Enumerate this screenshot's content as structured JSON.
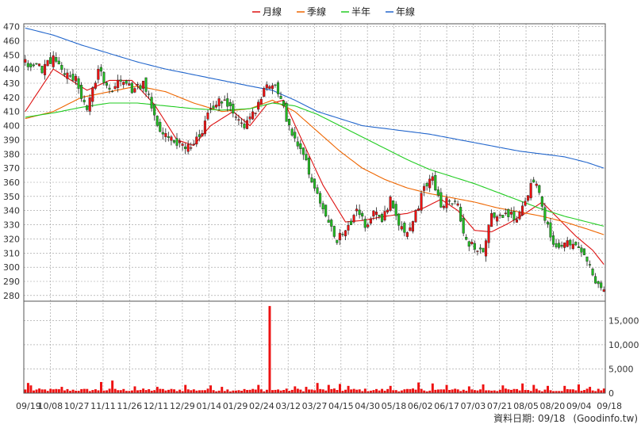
{
  "chart_data": {
    "type": "candlestick",
    "legend": [
      {
        "name": "月線",
        "color": "#dd1111"
      },
      {
        "name": "季線",
        "color": "#ee6600"
      },
      {
        "name": "半年",
        "color": "#22cc22"
      },
      {
        "name": "年線",
        "color": "#2266cc"
      }
    ],
    "price_axis": {
      "ylim": [
        276,
        472
      ],
      "ticks": [
        "470",
        "460",
        "450",
        "440",
        "430",
        "420",
        "410",
        "400",
        "390",
        "380",
        "370",
        "360",
        "350",
        "340",
        "330",
        "320",
        "310",
        "300",
        "290",
        "280"
      ]
    },
    "volume_axis": {
      "ylim": [
        0,
        19000
      ],
      "ticks": [
        "15,000",
        "10,000",
        "5,000",
        "0"
      ]
    },
    "x_labels": [
      "09/19",
      "10/08",
      "10/27",
      "11/11",
      "11/26",
      "12/11",
      "12/29",
      "01/14",
      "01/29",
      "02/24",
      "03/12",
      "03/27",
      "04/15",
      "04/30",
      "05/18",
      "06/02",
      "06/17",
      "07/03",
      "07/21",
      "08/05",
      "08/20",
      "09/04",
      "09/18"
    ],
    "close_anchors": [
      [
        0,
        445
      ],
      [
        6,
        440
      ],
      [
        10,
        447
      ],
      [
        14,
        438
      ],
      [
        18,
        432
      ],
      [
        22,
        410
      ],
      [
        26,
        440
      ],
      [
        30,
        425
      ],
      [
        34,
        432
      ],
      [
        38,
        425
      ],
      [
        42,
        430
      ],
      [
        45,
        415
      ],
      [
        48,
        395
      ],
      [
        51,
        390
      ],
      [
        55,
        388
      ],
      [
        59,
        385
      ],
      [
        62,
        392
      ],
      [
        66,
        412
      ],
      [
        70,
        418
      ],
      [
        74,
        410
      ],
      [
        78,
        400
      ],
      [
        82,
        410
      ],
      [
        86,
        432
      ],
      [
        90,
        425
      ],
      [
        93,
        405
      ],
      [
        96,
        390
      ],
      [
        99,
        380
      ],
      [
        102,
        360
      ],
      [
        105,
        345
      ],
      [
        108,
        330
      ],
      [
        111,
        320
      ],
      [
        115,
        328
      ],
      [
        118,
        342
      ],
      [
        121,
        330
      ],
      [
        124,
        338
      ],
      [
        127,
        334
      ],
      [
        130,
        348
      ],
      [
        133,
        330
      ],
      [
        136,
        325
      ],
      [
        139,
        338
      ],
      [
        142,
        355
      ],
      [
        145,
        362
      ],
      [
        148,
        345
      ],
      [
        151,
        348
      ],
      [
        154,
        342
      ],
      [
        157,
        318
      ],
      [
        160,
        315
      ],
      [
        163,
        312
      ],
      [
        166,
        338
      ],
      [
        169,
        335
      ],
      [
        172,
        338
      ],
      [
        175,
        333
      ],
      [
        178,
        345
      ],
      [
        181,
        362
      ],
      [
        183,
        355
      ],
      [
        185,
        335
      ],
      [
        188,
        315
      ],
      [
        191,
        313
      ],
      [
        194,
        318
      ],
      [
        197,
        313
      ],
      [
        200,
        306
      ],
      [
        202,
        292
      ],
      [
        204,
        286
      ],
      [
        206,
        283
      ]
    ],
    "ma_series": {
      "月線": [
        [
          0,
          410
        ],
        [
          10,
          440
        ],
        [
          22,
          425
        ],
        [
          30,
          432
        ],
        [
          38,
          432
        ],
        [
          46,
          415
        ],
        [
          54,
          390
        ],
        [
          60,
          386
        ],
        [
          66,
          400
        ],
        [
          74,
          410
        ],
        [
          80,
          400
        ],
        [
          86,
          415
        ],
        [
          92,
          418
        ],
        [
          98,
          392
        ],
        [
          106,
          358
        ],
        [
          114,
          332
        ],
        [
          120,
          333
        ],
        [
          128,
          336
        ],
        [
          136,
          338
        ],
        [
          142,
          342
        ],
        [
          148,
          348
        ],
        [
          154,
          340
        ],
        [
          160,
          326
        ],
        [
          166,
          325
        ],
        [
          172,
          331
        ],
        [
          178,
          338
        ],
        [
          184,
          346
        ],
        [
          190,
          334
        ],
        [
          196,
          322
        ],
        [
          202,
          312
        ],
        [
          206,
          302
        ]
      ],
      "季線": [
        [
          0,
          405
        ],
        [
          10,
          410
        ],
        [
          20,
          420
        ],
        [
          30,
          424
        ],
        [
          40,
          428
        ],
        [
          50,
          424
        ],
        [
          60,
          416
        ],
        [
          70,
          410
        ],
        [
          80,
          412
        ],
        [
          88,
          418
        ],
        [
          96,
          410
        ],
        [
          104,
          396
        ],
        [
          112,
          382
        ],
        [
          120,
          370
        ],
        [
          128,
          362
        ],
        [
          136,
          356
        ],
        [
          144,
          352
        ],
        [
          152,
          349
        ],
        [
          160,
          346
        ],
        [
          168,
          342
        ],
        [
          176,
          339
        ],
        [
          184,
          336
        ],
        [
          192,
          332
        ],
        [
          200,
          327
        ],
        [
          206,
          323
        ]
      ],
      "半年": [
        [
          0,
          406
        ],
        [
          10,
          409
        ],
        [
          20,
          413
        ],
        [
          30,
          416
        ],
        [
          40,
          416
        ],
        [
          50,
          414
        ],
        [
          60,
          412
        ],
        [
          70,
          411
        ],
        [
          80,
          412
        ],
        [
          88,
          416
        ],
        [
          96,
          414
        ],
        [
          104,
          408
        ],
        [
          112,
          400
        ],
        [
          120,
          392
        ],
        [
          128,
          384
        ],
        [
          136,
          376
        ],
        [
          144,
          369
        ],
        [
          152,
          364
        ],
        [
          160,
          359
        ],
        [
          168,
          353
        ],
        [
          176,
          347
        ],
        [
          184,
          341
        ],
        [
          192,
          336
        ],
        [
          200,
          332
        ],
        [
          206,
          329
        ]
      ],
      "年線": [
        [
          0,
          469
        ],
        [
          10,
          464
        ],
        [
          20,
          457
        ],
        [
          30,
          451
        ],
        [
          40,
          445
        ],
        [
          50,
          440
        ],
        [
          60,
          436
        ],
        [
          70,
          432
        ],
        [
          80,
          428
        ],
        [
          88,
          425
        ],
        [
          96,
          418
        ],
        [
          104,
          410
        ],
        [
          112,
          405
        ],
        [
          120,
          400
        ],
        [
          128,
          398
        ],
        [
          136,
          396
        ],
        [
          144,
          394
        ],
        [
          152,
          391
        ],
        [
          160,
          388
        ],
        [
          168,
          385
        ],
        [
          176,
          382
        ],
        [
          184,
          380
        ],
        [
          192,
          378
        ],
        [
          200,
          374
        ],
        [
          206,
          370
        ]
      ]
    },
    "volume_series": {
      "baseline": 600,
      "spikes": [
        [
          1,
          2100
        ],
        [
          2,
          1600
        ],
        [
          13,
          1300
        ],
        [
          27,
          2300
        ],
        [
          31,
          2600
        ],
        [
          39,
          1400
        ],
        [
          47,
          1300
        ],
        [
          57,
          1700
        ],
        [
          66,
          1600
        ],
        [
          70,
          1300
        ],
        [
          83,
          1700
        ],
        [
          87,
          18000
        ],
        [
          96,
          1400
        ],
        [
          100,
          1300
        ],
        [
          104,
          2100
        ],
        [
          108,
          1700
        ],
        [
          112,
          1900
        ],
        [
          115,
          1500
        ],
        [
          130,
          1500
        ],
        [
          140,
          2200
        ],
        [
          145,
          2000
        ],
        [
          150,
          1700
        ],
        [
          158,
          1400
        ],
        [
          163,
          1800
        ],
        [
          170,
          1600
        ],
        [
          177,
          2000
        ],
        [
          181,
          1700
        ],
        [
          186,
          1500
        ],
        [
          192,
          1500
        ],
        [
          197,
          1800
        ],
        [
          201,
          1300
        ]
      ]
    }
  },
  "footer": {
    "label": "資料日期:",
    "date": "09/18",
    "source": "(Goodinfo.tw)"
  }
}
